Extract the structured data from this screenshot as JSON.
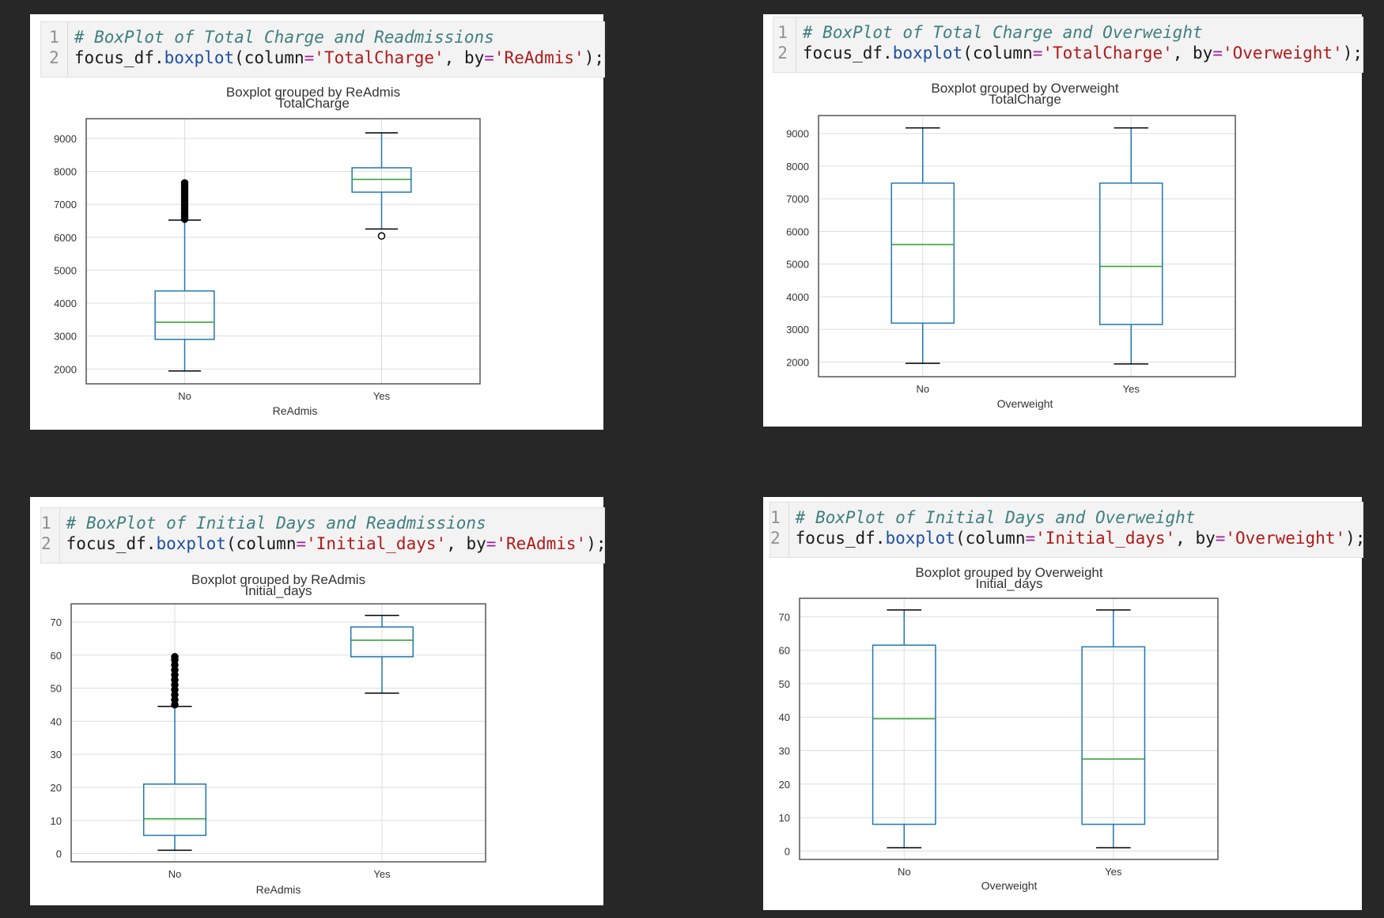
{
  "panels": [
    {
      "code": {
        "line_numbers": [
          "1",
          "2"
        ],
        "comment": "# BoxPlot of Total Charge and Readmissions",
        "obj": "focus_df.",
        "method": "boxplot",
        "p1": "(column",
        "eq1": "=",
        "s1": "'TotalCharge'",
        "p2": ", by",
        "eq2": "=",
        "s2": "'ReAdmis'",
        "p3": ");"
      },
      "chart_data": {
        "type": "box",
        "title": "Boxplot grouped by ReAdmis",
        "subtitle": "TotalCharge",
        "xlabel": "ReAdmis",
        "ylim": [
          1550,
          9600
        ],
        "yticks": [
          2000,
          3000,
          4000,
          5000,
          6000,
          7000,
          8000,
          9000
        ],
        "grid": true,
        "categories": [
          "No",
          "Yes"
        ],
        "boxes": [
          {
            "whisker_low": 1940,
            "q1": 2900,
            "median": 3420,
            "q3": 4370,
            "whisker_high": 6520,
            "outliers": [
              6550,
              6620,
              6700,
              6780,
              6860,
              6940,
              7020,
              7100,
              7180,
              7260,
              7340,
              7420,
              7500,
              7580,
              7650
            ]
          },
          {
            "whisker_low": 6250,
            "q1": 7370,
            "median": 7760,
            "q3": 8110,
            "whisker_high": 9170,
            "outliers": [
              6040
            ]
          }
        ]
      }
    },
    {
      "code": {
        "line_numbers": [
          "1",
          "2"
        ],
        "comment": "# BoxPlot of Total Charge and Overweight",
        "obj": "focus_df.",
        "method": "boxplot",
        "p1": "(column",
        "eq1": "=",
        "s1": "'TotalCharge'",
        "p2": ", by",
        "eq2": "=",
        "s2": "'Overweight'",
        "p3": ");"
      },
      "chart_data": {
        "type": "box",
        "title": "Boxplot grouped by Overweight",
        "subtitle": "TotalCharge",
        "xlabel": "Overweight",
        "ylim": [
          1550,
          9550
        ],
        "yticks": [
          2000,
          3000,
          4000,
          5000,
          6000,
          7000,
          8000,
          9000
        ],
        "grid": true,
        "categories": [
          "No",
          "Yes"
        ],
        "boxes": [
          {
            "whisker_low": 1960,
            "q1": 3190,
            "median": 5600,
            "q3": 7480,
            "whisker_high": 9170,
            "outliers": []
          },
          {
            "whisker_low": 1940,
            "q1": 3150,
            "median": 4930,
            "q3": 7480,
            "whisker_high": 9170,
            "outliers": []
          }
        ]
      }
    },
    {
      "code": {
        "line_numbers": [
          "1",
          "2"
        ],
        "comment": "# BoxPlot of Initial Days and Readmissions",
        "obj": "focus_df.",
        "method": "boxplot",
        "p1": "(column",
        "eq1": "=",
        "s1": "'Initial_days'",
        "p2": ", by",
        "eq2": "=",
        "s2": "'ReAdmis'",
        "p3": ");"
      },
      "chart_data": {
        "type": "box",
        "title": "Boxplot grouped by ReAdmis",
        "subtitle": "Initial_days",
        "xlabel": "ReAdmis",
        "ylim": [
          -2.5,
          75.5
        ],
        "yticks": [
          0,
          10,
          20,
          30,
          40,
          50,
          60,
          70
        ],
        "grid": true,
        "categories": [
          "No",
          "Yes"
        ],
        "boxes": [
          {
            "whisker_low": 1,
            "q1": 5.5,
            "median": 10.5,
            "q3": 21,
            "whisker_high": 44.5,
            "outliers": [
              45,
              46.5,
              48,
              49.5,
              51,
              52.5,
              54,
              55.5,
              57,
              58.5,
              59.5
            ]
          },
          {
            "whisker_low": 48.5,
            "q1": 59.5,
            "median": 64.5,
            "q3": 68.5,
            "whisker_high": 72,
            "outliers": []
          }
        ]
      }
    },
    {
      "code": {
        "line_numbers": [
          "1",
          "2"
        ],
        "comment": "# BoxPlot of Initial Days and Overweight",
        "obj": "focus_df.",
        "method": "boxplot",
        "p1": "(column",
        "eq1": "=",
        "s1": "'Initial_days'",
        "p2": ", by",
        "eq2": "=",
        "s2": "'Overweight'",
        "p3": ");"
      },
      "chart_data": {
        "type": "box",
        "title": "Boxplot grouped by Overweight",
        "subtitle": "Initial_days",
        "xlabel": "Overweight",
        "ylim": [
          -2.5,
          75.5
        ],
        "yticks": [
          0,
          10,
          20,
          30,
          40,
          50,
          60,
          70
        ],
        "grid": true,
        "categories": [
          "No",
          "Yes"
        ],
        "boxes": [
          {
            "whisker_low": 1,
            "q1": 8,
            "median": 39.5,
            "q3": 61.5,
            "whisker_high": 72,
            "outliers": []
          },
          {
            "whisker_low": 1,
            "q1": 8,
            "median": 27.5,
            "q3": 61,
            "whisker_high": 72,
            "outliers": []
          }
        ]
      }
    }
  ],
  "colors": {
    "box": "#1f77b4",
    "median": "#2ca02c",
    "whisker_cap": "#000000",
    "grid": "#dddddd",
    "frame": "#555555"
  }
}
